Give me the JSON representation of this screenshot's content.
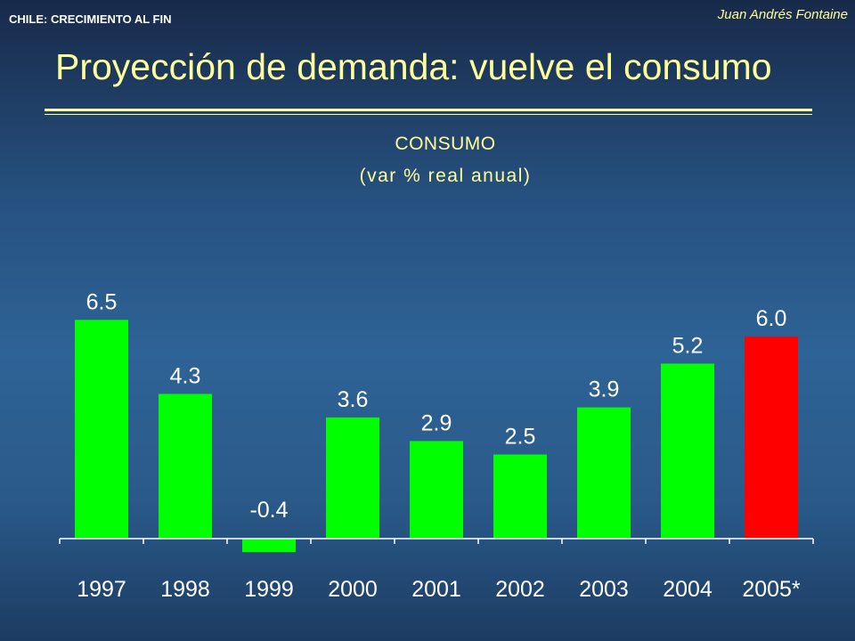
{
  "header": {
    "left_text": "CHILE:  CRECIMIENTO AL FIN",
    "author": "Juan Andrés Fontaine"
  },
  "slide": {
    "title": "Proyección de demanda: vuelve el consumo"
  },
  "colors": {
    "title_yellow": "#ffff99",
    "bar_green": "#00ff00",
    "bar_red": "#ff0000",
    "axis_white": "#ffffff"
  },
  "chart_data": {
    "type": "bar",
    "title": "CONSUMO",
    "subtitle": "(var % real anual)",
    "categories": [
      "1997",
      "1998",
      "1999",
      "2000",
      "2001",
      "2002",
      "2003",
      "2004",
      "2005*"
    ],
    "values": [
      6.5,
      4.3,
      -0.4,
      3.6,
      2.9,
      2.5,
      3.9,
      5.2,
      6.0
    ],
    "value_labels": [
      "6.5",
      "4.3",
      "-0.4",
      "3.6",
      "2.9",
      "2.5",
      "3.9",
      "5.2",
      "6.0"
    ],
    "bar_colors": [
      "#00ff00",
      "#00ff00",
      "#00ff00",
      "#00ff00",
      "#00ff00",
      "#00ff00",
      "#00ff00",
      "#00ff00",
      "#ff0000"
    ],
    "xlabel": "",
    "ylabel": "",
    "ylim": [
      -0.4,
      6.5
    ],
    "grid": false,
    "legend": "none"
  }
}
